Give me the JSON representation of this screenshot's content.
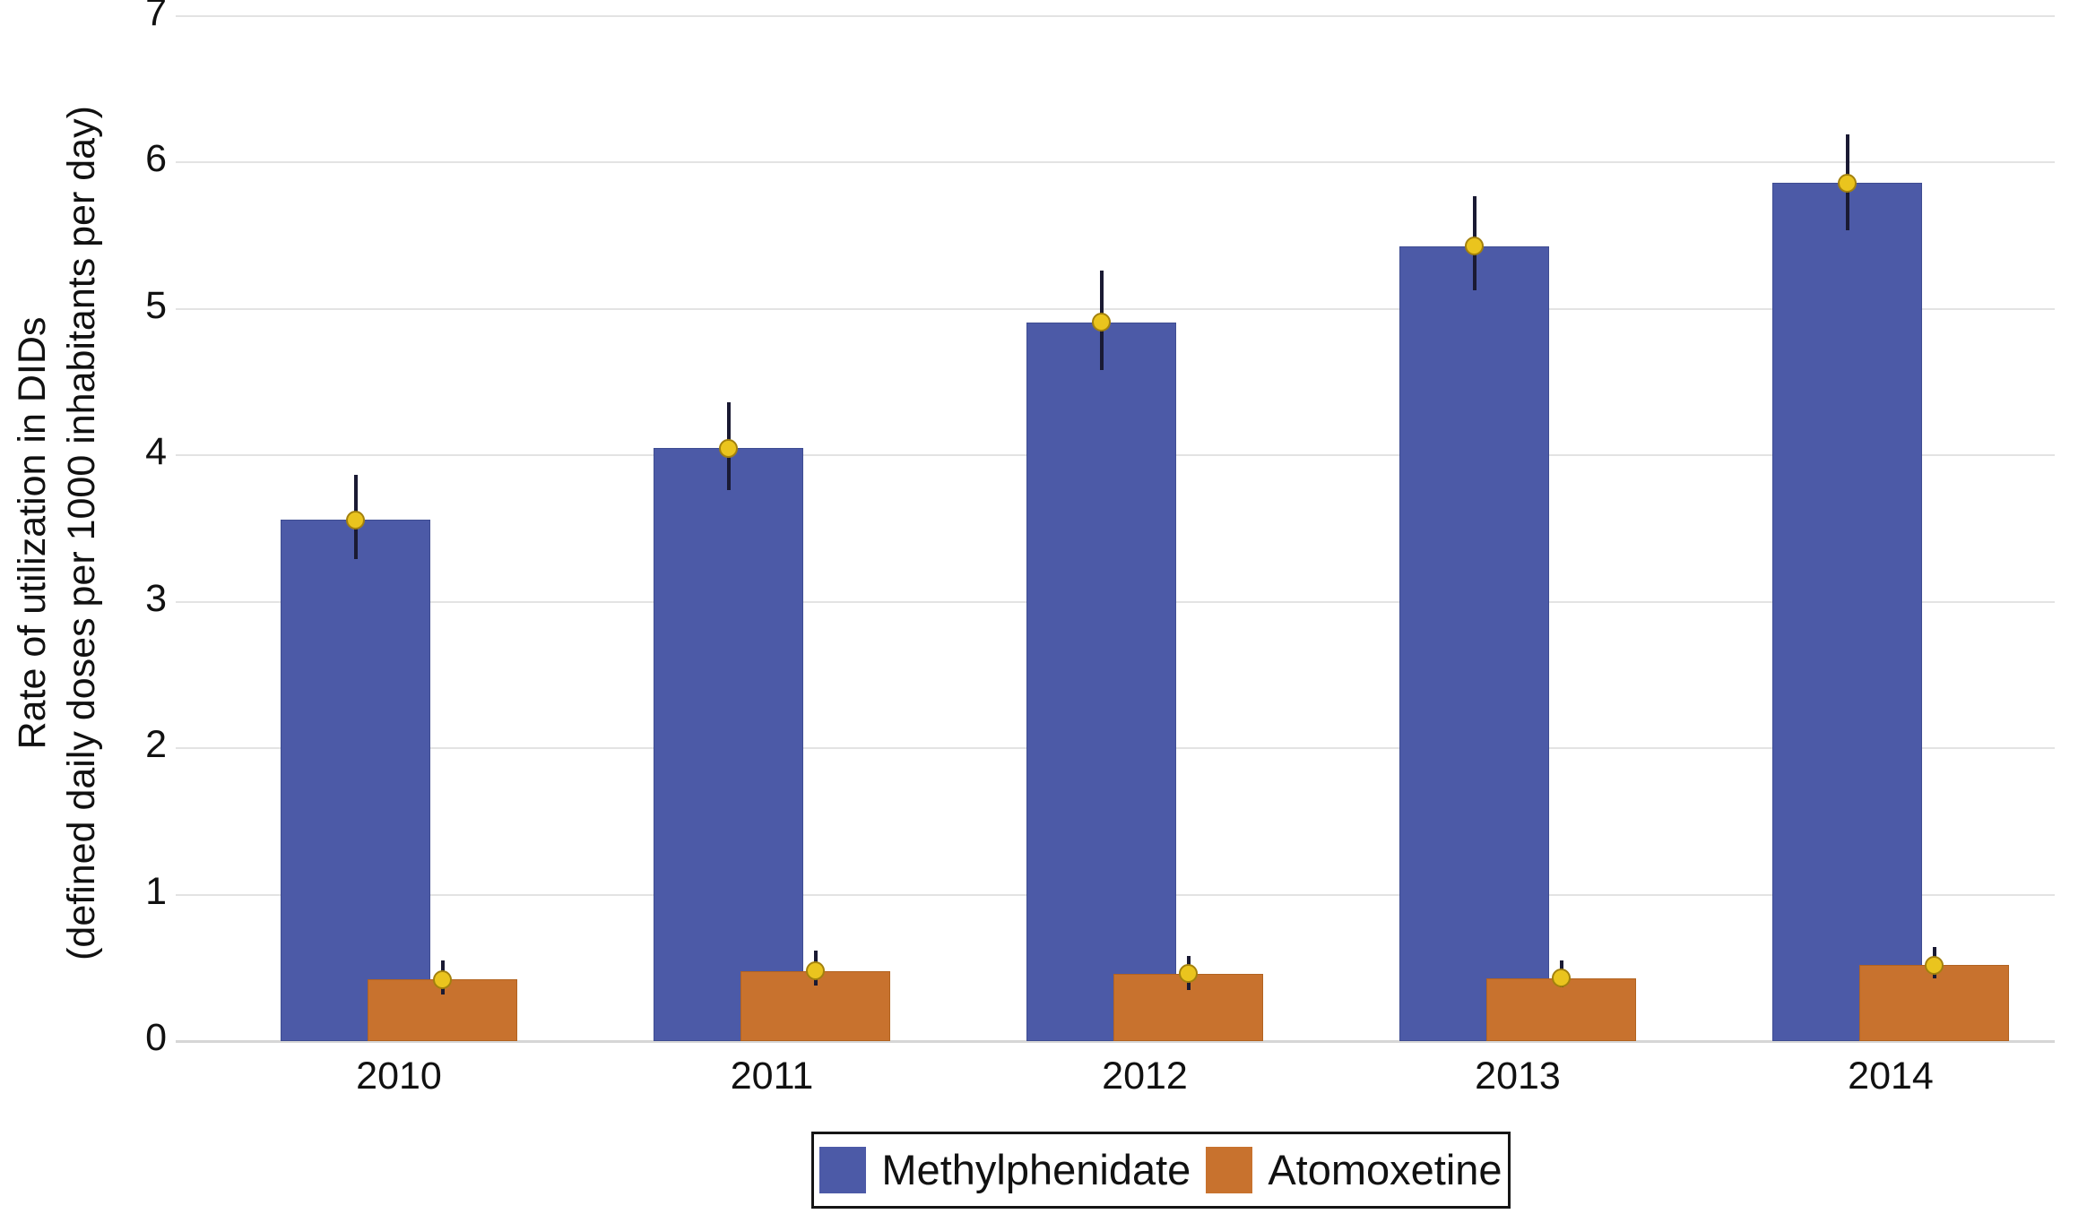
{
  "chart_data": {
    "type": "bar",
    "title": "",
    "categories": [
      "2010",
      "2011",
      "2012",
      "2013",
      "2014"
    ],
    "series": [
      {
        "name": "Methylphenidate",
        "color": "#4C5AA7",
        "edge_color": "#3F4D92",
        "values": [
          3.56,
          4.05,
          4.91,
          5.43,
          5.86
        ],
        "ci_low": [
          3.29,
          3.76,
          4.58,
          5.13,
          5.54
        ],
        "ci_high": [
          3.87,
          4.36,
          5.26,
          5.77,
          6.19
        ]
      },
      {
        "name": "Atomoxetine",
        "color": "#C8722E",
        "edge_color": "#B26320",
        "values": [
          0.42,
          0.48,
          0.46,
          0.43,
          0.52
        ],
        "ci_low": [
          0.32,
          0.38,
          0.35,
          0.37,
          0.43
        ],
        "ci_high": [
          0.55,
          0.62,
          0.58,
          0.55,
          0.64
        ]
      }
    ],
    "xlabel": "",
    "ylabel_line1": "Rate of utilization in DIDs",
    "ylabel_line2": "(defined daily doses per 1000 inhabitants per day)",
    "ylim": [
      0,
      7
    ],
    "yticks": [
      0,
      1,
      2,
      3,
      4,
      5,
      6,
      7
    ],
    "grid": "horizontal",
    "grid_color": "#e3e3e3",
    "legend_position": "bottom",
    "error_bar_color": "#1A1A33",
    "marker": "circle",
    "marker_color": "#EAC41E",
    "marker_edge_color": "#A3810E"
  }
}
